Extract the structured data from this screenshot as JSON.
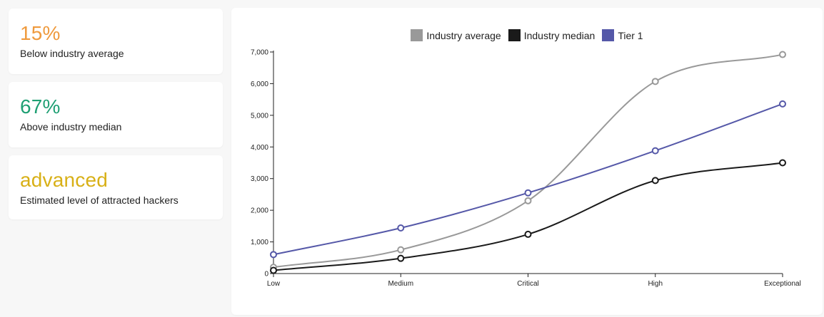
{
  "stats": [
    {
      "value": "15%",
      "label": "Below industry average",
      "color": "#ef9a3d"
    },
    {
      "value": "67%",
      "label": "Above industry median",
      "color": "#1e9f73"
    },
    {
      "value": "advanced",
      "label": "Estimated level of attracted hackers",
      "color": "#d8b017"
    }
  ],
  "chart_data": {
    "type": "line",
    "categories": [
      "Low",
      "Medium",
      "Critical",
      "High",
      "Exceptional"
    ],
    "y_ticks": [
      "0",
      "1,000",
      "2,000",
      "3,000",
      "4,000",
      "5,000",
      "6,000",
      "7,000"
    ],
    "ylim": [
      0,
      7000
    ],
    "legend_position": "top-center",
    "grid": false,
    "series": [
      {
        "name": "Industry average",
        "color": "#999999",
        "values": [
          200,
          750,
          2300,
          6070,
          6920
        ]
      },
      {
        "name": "Industry median",
        "color": "#1a1a1a",
        "values": [
          100,
          480,
          1240,
          2940,
          3500
        ]
      },
      {
        "name": "Tier 1",
        "color": "#5558a8",
        "values": [
          600,
          1440,
          2550,
          3880,
          5360
        ]
      }
    ]
  }
}
